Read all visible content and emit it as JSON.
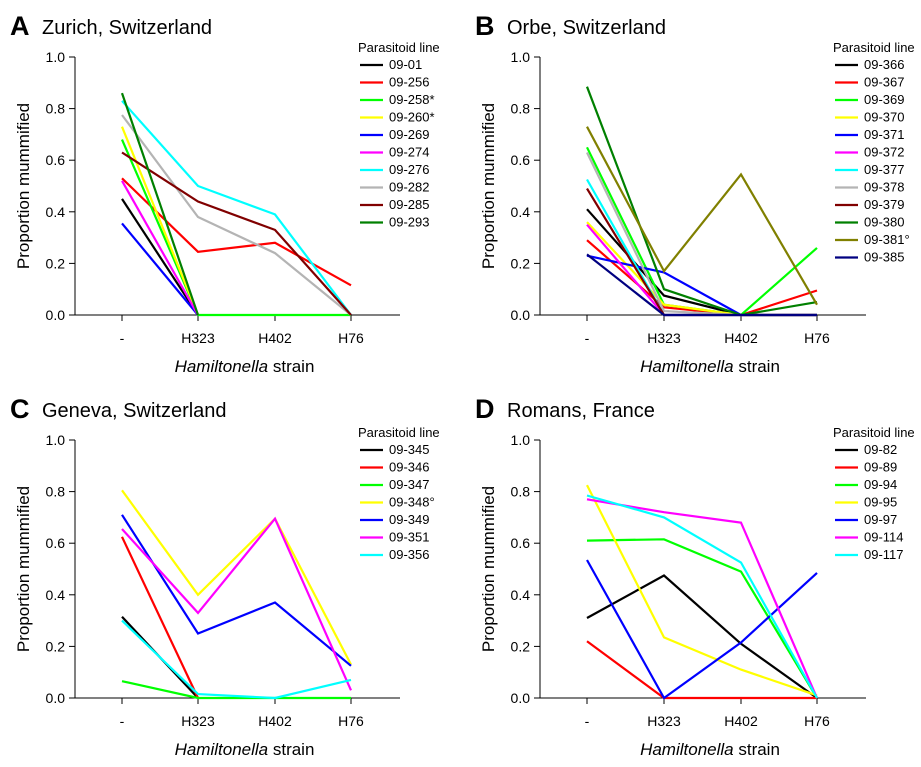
{
  "chart_data": [
    {
      "type": "line",
      "panel_letter": "A",
      "title": "Zurich, Switzerland",
      "categories": [
        "-",
        "H323",
        "H402",
        "H76"
      ],
      "xlabel_italic": "Hamiltonella",
      "xlabel_rest": " strain",
      "ylabel": "Proportion mummified",
      "ylim": [
        0,
        1
      ],
      "yticks": [
        "0.0",
        "0.2",
        "0.4",
        "0.6",
        "0.8",
        "1.0"
      ],
      "legend_title": "Parasitoid line",
      "legend_position": "top-right",
      "series": [
        {
          "name": "09-01",
          "color": "#000000",
          "values": [
            0.45,
            0,
            null,
            null
          ]
        },
        {
          "name": "09-256",
          "color": "#ff0000",
          "values": [
            0.53,
            0.245,
            0.28,
            0.115
          ]
        },
        {
          "name": "09-258*",
          "color": "#00ff00",
          "values": [
            0.68,
            0,
            0,
            0
          ]
        },
        {
          "name": "09-260*",
          "color": "#ffff00",
          "values": [
            0.73,
            0,
            null,
            null
          ]
        },
        {
          "name": "09-269",
          "color": "#0000ff",
          "values": [
            0.355,
            0,
            null,
            null
          ]
        },
        {
          "name": "09-274",
          "color": "#ff00ff",
          "values": [
            0.52,
            0,
            null,
            null
          ]
        },
        {
          "name": "09-276",
          "color": "#00ffff",
          "values": [
            0.83,
            0.5,
            0.39,
            0
          ]
        },
        {
          "name": "09-282",
          "color": "#b4b4b4",
          "values": [
            0.775,
            0.38,
            0.24,
            0
          ]
        },
        {
          "name": "09-285",
          "color": "#800000",
          "values": [
            0.63,
            0.44,
            0.33,
            0
          ]
        },
        {
          "name": "09-293",
          "color": "#008000",
          "values": [
            0.86,
            0,
            null,
            null
          ]
        }
      ]
    },
    {
      "type": "line",
      "panel_letter": "B",
      "title": "Orbe, Switzerland",
      "categories": [
        "-",
        "H323",
        "H402",
        "H76"
      ],
      "xlabel_italic": "Hamiltonella",
      "xlabel_rest": " strain",
      "ylabel": "Proportion mummified",
      "ylim": [
        0,
        1
      ],
      "yticks": [
        "0.0",
        "0.2",
        "0.4",
        "0.6",
        "0.8",
        "1.0"
      ],
      "legend_title": "Parasitoid line",
      "legend_position": "top-right",
      "series": [
        {
          "name": "09-366",
          "color": "#000000",
          "values": [
            0.41,
            0.075,
            0,
            0
          ]
        },
        {
          "name": "09-367",
          "color": "#ff0000",
          "values": [
            0.29,
            0.03,
            0,
            0.095
          ]
        },
        {
          "name": "09-369",
          "color": "#00ff00",
          "values": [
            0.65,
            0.04,
            0,
            0.26
          ]
        },
        {
          "name": "09-370",
          "color": "#ffff00",
          "values": [
            0.36,
            0.04,
            0,
            0
          ]
        },
        {
          "name": "09-371",
          "color": "#0000ff",
          "values": [
            0.23,
            0.165,
            0,
            0
          ]
        },
        {
          "name": "09-372",
          "color": "#ff00ff",
          "values": [
            0.35,
            0,
            0,
            0
          ]
        },
        {
          "name": "09-377",
          "color": "#00ffff",
          "values": [
            0.525,
            0,
            0,
            0
          ]
        },
        {
          "name": "09-378",
          "color": "#b4b4b4",
          "values": [
            0.63,
            0.015,
            0,
            0
          ]
        },
        {
          "name": "09-379",
          "color": "#800000",
          "values": [
            0.49,
            0,
            0,
            0
          ]
        },
        {
          "name": "09-380",
          "color": "#008000",
          "values": [
            0.885,
            0.1,
            0,
            0.05
          ]
        },
        {
          "name": "09-381°",
          "color": "#808000",
          "values": [
            0.73,
            0.17,
            0.545,
            0.04
          ]
        },
        {
          "name": "09-385",
          "color": "#000080",
          "values": [
            0.235,
            0,
            0,
            0
          ]
        }
      ]
    },
    {
      "type": "line",
      "panel_letter": "C",
      "title": "Geneva, Switzerland",
      "categories": [
        "-",
        "H323",
        "H402",
        "H76"
      ],
      "xlabel_italic": "Hamiltonella",
      "xlabel_rest": " strain",
      "ylabel": "Proportion mummified",
      "ylim": [
        0,
        1
      ],
      "yticks": [
        "0.0",
        "0.2",
        "0.4",
        "0.6",
        "0.8",
        "1.0"
      ],
      "legend_title": "Parasitoid line",
      "legend_position": "top-right",
      "series": [
        {
          "name": "09-345",
          "color": "#000000",
          "values": [
            0.315,
            0,
            null,
            null
          ]
        },
        {
          "name": "09-346",
          "color": "#ff0000",
          "values": [
            0.625,
            0,
            null,
            null
          ]
        },
        {
          "name": "09-347",
          "color": "#00ff00",
          "values": [
            0.065,
            0,
            0,
            0
          ]
        },
        {
          "name": "09-348°",
          "color": "#ffff00",
          "values": [
            0.805,
            0.4,
            0.695,
            0.13
          ]
        },
        {
          "name": "09-349",
          "color": "#0000ff",
          "values": [
            0.71,
            0.25,
            0.37,
            0.125
          ]
        },
        {
          "name": "09-351",
          "color": "#ff00ff",
          "values": [
            0.655,
            0.33,
            0.695,
            0.03
          ]
        },
        {
          "name": "09-356",
          "color": "#00ffff",
          "values": [
            0.3,
            0.015,
            0,
            0.07
          ]
        }
      ]
    },
    {
      "type": "line",
      "panel_letter": "D",
      "title": "Romans, France",
      "categories": [
        "-",
        "H323",
        "H402",
        "H76"
      ],
      "xlabel_italic": "Hamiltonella",
      "xlabel_rest": " strain",
      "ylabel": "Proportion mummified",
      "ylim": [
        0,
        1
      ],
      "yticks": [
        "0.0",
        "0.2",
        "0.4",
        "0.6",
        "0.8",
        "1.0"
      ],
      "legend_title": "Parasitoid line",
      "legend_position": "top-right",
      "series": [
        {
          "name": "09-82",
          "color": "#000000",
          "values": [
            0.31,
            0.475,
            0.21,
            0
          ]
        },
        {
          "name": "09-89",
          "color": "#ff0000",
          "values": [
            0.22,
            0,
            0,
            0
          ]
        },
        {
          "name": "09-94",
          "color": "#00ff00",
          "values": [
            0.61,
            0.615,
            0.49,
            0
          ]
        },
        {
          "name": "09-95",
          "color": "#ffff00",
          "values": [
            0.825,
            0.235,
            0.11,
            0.01
          ]
        },
        {
          "name": "09-97",
          "color": "#0000ff",
          "values": [
            0.535,
            0,
            0.215,
            0.485
          ]
        },
        {
          "name": "09-114",
          "color": "#ff00ff",
          "values": [
            0.77,
            0.72,
            0.68,
            0
          ]
        },
        {
          "name": "09-117",
          "color": "#00ffff",
          "values": [
            0.785,
            0.7,
            0.525,
            0
          ]
        }
      ]
    }
  ]
}
